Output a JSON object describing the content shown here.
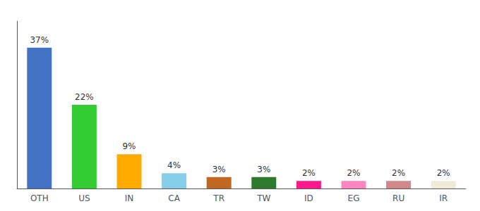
{
  "chart_data": {
    "type": "bar",
    "categories": [
      "OTH",
      "US",
      "IN",
      "CA",
      "TR",
      "TW",
      "ID",
      "EG",
      "RU",
      "IR"
    ],
    "values": [
      37,
      22,
      9,
      4,
      3,
      3,
      2,
      2,
      2,
      2
    ],
    "value_labels": [
      "37%",
      "22%",
      "9%",
      "4%",
      "3%",
      "3%",
      "2%",
      "2%",
      "2%",
      "2%"
    ],
    "colors": [
      "#4472c4",
      "#33cc33",
      "#ffaa00",
      "#87ceeb",
      "#c06820",
      "#2d7a2d",
      "#ff1a8c",
      "#ff85c0",
      "#d08888",
      "#f0ead6"
    ],
    "ylim": [
      0,
      44
    ],
    "data_labels": true,
    "tick_labels": "x",
    "grid": false
  }
}
